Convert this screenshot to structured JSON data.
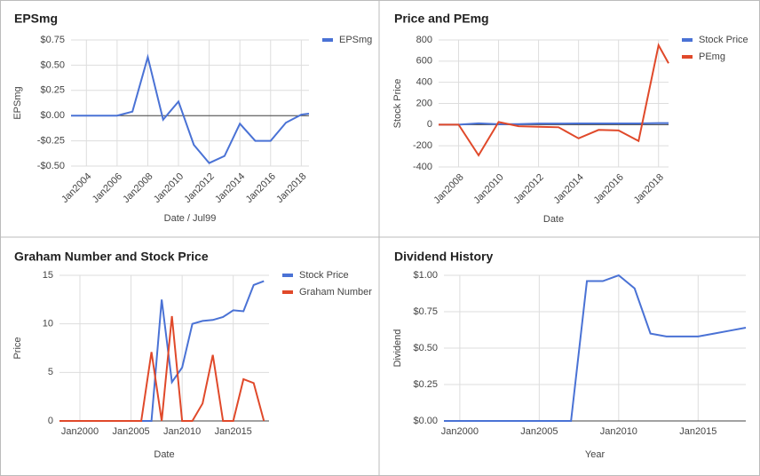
{
  "chart_data": [
    {
      "type": "line",
      "title": "EPSmg",
      "xlabel": "Date / Jul99",
      "ylabel": "EPSmg",
      "x": [
        2003,
        2004,
        2005,
        2006,
        2007,
        2008,
        2009,
        2010,
        2011,
        2012,
        2013,
        2014,
        2015,
        2016,
        2017,
        2018,
        2018.5
      ],
      "series": [
        {
          "name": "EPSmg",
          "color": "#4a72d5",
          "values": [
            0,
            0,
            0,
            0,
            0.04,
            0.58,
            -0.04,
            0.14,
            -0.29,
            -0.47,
            -0.4,
            -0.08,
            -0.25,
            -0.25,
            -0.07,
            0.01,
            0.02
          ]
        }
      ],
      "xlim": [
        2003,
        2018.5
      ],
      "ylim": [
        -0.5,
        0.75
      ],
      "xticks": [
        {
          "value": 2004,
          "label": "Jan2004"
        },
        {
          "value": 2006,
          "label": "Jan2006"
        },
        {
          "value": 2008,
          "label": "Jan2008"
        },
        {
          "value": 2010,
          "label": "Jan2010"
        },
        {
          "value": 2012,
          "label": "Jan2012"
        },
        {
          "value": 2014,
          "label": "Jan2014"
        },
        {
          "value": 2016,
          "label": "Jan2016"
        },
        {
          "value": 2018,
          "label": "Jan2018"
        }
      ],
      "yticks": [
        {
          "value": 0.75,
          "label": "$0.75"
        },
        {
          "value": 0.5,
          "label": "$0.50"
        },
        {
          "value": 0.25,
          "label": "$0.25"
        },
        {
          "value": 0,
          "label": "$0.00"
        },
        {
          "value": -0.25,
          "label": "-$0.25"
        },
        {
          "value": -0.5,
          "label": "-$0.50"
        }
      ],
      "grid": true,
      "legend": "right",
      "rotate_xticks": true
    },
    {
      "type": "line",
      "title": "Price and PEmg",
      "xlabel": "Date",
      "ylabel": "Stock Price",
      "x": [
        2007,
        2008,
        2009,
        2010,
        2011,
        2012,
        2013,
        2014,
        2015,
        2016,
        2017,
        2018,
        2018.5
      ],
      "series": [
        {
          "name": "Stock Price",
          "color": "#4a72d5",
          "values": [
            0,
            0,
            12,
            4,
            5,
            10,
            10,
            11,
            11,
            11,
            11,
            14,
            14.5
          ]
        },
        {
          "name": "PEmg",
          "color": "#e0492a",
          "values": [
            0,
            0,
            -290,
            25,
            -15,
            -20,
            -25,
            -130,
            -50,
            -55,
            -155,
            750,
            580
          ]
        }
      ],
      "xlim": [
        2007,
        2018.5
      ],
      "ylim": [
        -400,
        800
      ],
      "xticks": [
        {
          "value": 2008,
          "label": "Jan2008"
        },
        {
          "value": 2010,
          "label": "Jan2010"
        },
        {
          "value": 2012,
          "label": "Jan2012"
        },
        {
          "value": 2014,
          "label": "Jan2014"
        },
        {
          "value": 2016,
          "label": "Jan2016"
        },
        {
          "value": 2018,
          "label": "Jan2018"
        }
      ],
      "yticks": [
        800,
        600,
        400,
        200,
        0,
        -200,
        -400
      ],
      "grid": true,
      "legend": "right",
      "rotate_xticks": true
    },
    {
      "type": "line",
      "title": "Graham Number and Stock Price",
      "xlabel": "Date",
      "ylabel": "Price",
      "x": [
        1998,
        1999,
        2000,
        2001,
        2002,
        2003,
        2004,
        2005,
        2006,
        2007,
        2008,
        2009,
        2010,
        2011,
        2012,
        2013,
        2014,
        2015,
        2016,
        2017,
        2018
      ],
      "series": [
        {
          "name": "Stock Price",
          "color": "#4a72d5",
          "values": [
            0,
            0,
            0,
            0,
            0,
            0,
            0,
            0,
            0,
            0,
            12.5,
            4,
            5.5,
            10,
            10.3,
            10.4,
            10.7,
            11.4,
            11.3,
            14,
            14.4
          ]
        },
        {
          "name": "Graham Number",
          "color": "#e0492a",
          "values": [
            0,
            0,
            0,
            0,
            0,
            0,
            0,
            0,
            0,
            7.1,
            0,
            10.8,
            0,
            0,
            1.8,
            6.8,
            0,
            0,
            4.3,
            3.9,
            0
          ]
        }
      ],
      "xlim": [
        1998,
        2018.5
      ],
      "ylim": [
        0,
        15
      ],
      "xticks": [
        {
          "value": 2000,
          "label": "Jan2000"
        },
        {
          "value": 2005,
          "label": "Jan2005"
        },
        {
          "value": 2010,
          "label": "Jan2010"
        },
        {
          "value": 2015,
          "label": "Jan2015"
        }
      ],
      "yticks": [
        15,
        10,
        5,
        0
      ],
      "grid": true,
      "legend": "right",
      "rotate_xticks": false
    },
    {
      "type": "line",
      "title": "Dividend History",
      "xlabel": "Year",
      "ylabel": "Dividend",
      "x": [
        1999,
        2000,
        2001,
        2002,
        2003,
        2004,
        2005,
        2006,
        2007,
        2008,
        2009,
        2010,
        2011,
        2012,
        2013,
        2014,
        2015,
        2016,
        2017,
        2018
      ],
      "series": [
        {
          "color": "#4a72d5",
          "values": [
            0,
            0,
            0,
            0,
            0,
            0,
            0,
            0,
            0,
            0.96,
            0.96,
            1.0,
            0.91,
            0.6,
            0.58,
            0.58,
            0.58,
            0.6,
            0.62,
            0.64
          ]
        }
      ],
      "xlim": [
        1999,
        2018
      ],
      "ylim": [
        0,
        1
      ],
      "xticks": [
        {
          "value": 2000,
          "label": "Jan2000"
        },
        {
          "value": 2005,
          "label": "Jan2005"
        },
        {
          "value": 2010,
          "label": "Jan2010"
        },
        {
          "value": 2015,
          "label": "Jan2015"
        }
      ],
      "yticks": [
        {
          "value": 1,
          "label": "$1.00"
        },
        {
          "value": 0.75,
          "label": "$0.75"
        },
        {
          "value": 0.5,
          "label": "$0.50"
        },
        {
          "value": 0.25,
          "label": "$0.25"
        },
        {
          "value": 0,
          "label": "$0.00"
        }
      ],
      "grid": true,
      "rotate_xticks": false
    }
  ]
}
